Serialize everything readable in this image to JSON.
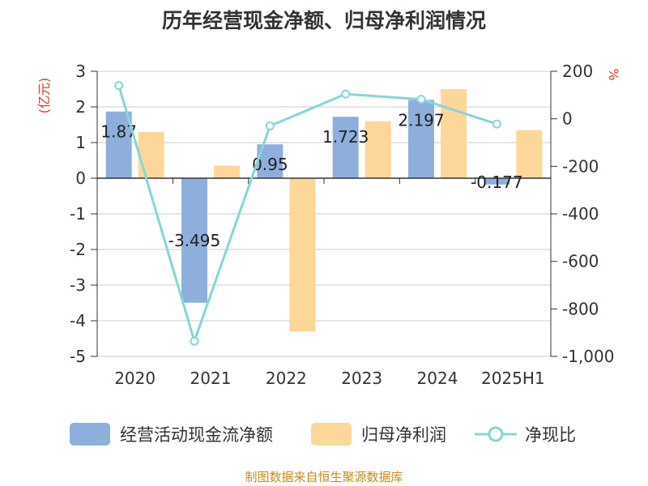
{
  "title": "历年经营现金净额、归母净利润情况",
  "source": "制图数据来自恒生聚源数据库",
  "colors": {
    "ocf": "#8eaedc",
    "np": "#fdd799",
    "ratio": "#88d5d8",
    "axis_right_label": "#e8302a",
    "axis_left_label": "#e8302a"
  },
  "chart_data": {
    "type": "bar",
    "categories": [
      "2020",
      "2021",
      "2022",
      "2023",
      "2024",
      "2025H1"
    ],
    "series": [
      {
        "name": "经营活动现金流净额",
        "axis": "left",
        "type": "bar",
        "values": [
          1.87,
          -3.495,
          0.95,
          1.723,
          2.197,
          -0.177
        ],
        "labels": [
          "1.87",
          "-3.495",
          "0.95",
          "1.723",
          "2.197",
          "-0.177"
        ]
      },
      {
        "name": "归母净利润",
        "axis": "left",
        "type": "bar",
        "values": [
          1.3,
          0.35,
          -4.3,
          1.6,
          2.5,
          1.35
        ]
      },
      {
        "name": "净现比",
        "axis": "right",
        "type": "line",
        "values": [
          140,
          -936,
          -30,
          104,
          82,
          -22
        ]
      }
    ],
    "left_axis": {
      "label": "(亿元)",
      "ylim": [
        -5,
        3
      ],
      "ticks": [
        "3",
        "2",
        "1",
        "0",
        "-1",
        "-2",
        "-3",
        "-4",
        "-5"
      ]
    },
    "right_axis": {
      "label": "%",
      "ylim": [
        -1000,
        200
      ],
      "ticks": [
        "200",
        "0",
        "-200",
        "-400",
        "-600",
        "-800",
        "-1,000"
      ]
    },
    "grid": true,
    "legend_position": "bottom"
  }
}
